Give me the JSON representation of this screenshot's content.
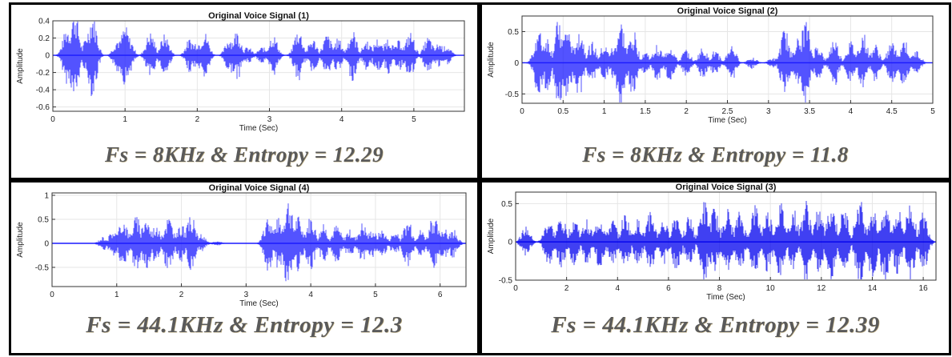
{
  "chart_data": [
    {
      "type": "line",
      "title": "Original Voice Signal (1)",
      "xlabel": "Time (Sec)",
      "ylabel": "Amplitude",
      "xlim": [
        0,
        5.7
      ],
      "ylim": [
        -0.65,
        0.4
      ],
      "xticks": [
        "0",
        "1",
        "2",
        "3",
        "4",
        "5"
      ],
      "yticks": [
        "0.4",
        "0.2",
        "0",
        "-0.2",
        "-0.4",
        "-0.6"
      ],
      "grid": true,
      "color": "#1a1aff",
      "series": [
        {
          "x": [
            0.0,
            0.2,
            0.3,
            0.5,
            0.55,
            0.9,
            1.0,
            1.05,
            1.35,
            1.55,
            1.9,
            2.0,
            2.1,
            2.45,
            2.55,
            2.7,
            2.9,
            3.05,
            3.4,
            3.6,
            3.8,
            3.95,
            4.15,
            4.35,
            4.5,
            4.65,
            4.8,
            4.95,
            5.2,
            5.35,
            5.45,
            5.7
          ],
          "y": [
            0.0,
            0.34,
            -0.55,
            0.32,
            -0.5,
            0.2,
            -0.35,
            0.22,
            -0.28,
            0.25,
            -0.2,
            0.18,
            -0.28,
            0.22,
            -0.3,
            0.1,
            -0.1,
            0.25,
            -0.32,
            0.2,
            -0.25,
            0.2,
            -0.3,
            0.18,
            -0.2,
            0.22,
            -0.18,
            0.28,
            -0.22,
            0.15,
            -0.12,
            0.0
          ]
        }
      ],
      "caption": "Fs = 8KHz & Entropy = 12.29"
    },
    {
      "type": "line",
      "title": "Original Voice Signal (2)",
      "xlabel": "Time (Sec)",
      "ylabel": "Amplitude",
      "xlim": [
        0,
        5
      ],
      "ylim": [
        -0.65,
        0.75
      ],
      "xticks": [
        "0",
        "0.5",
        "1",
        "1.5",
        "2",
        "2.5",
        "3",
        "3.5",
        "4",
        "4.5",
        "5"
      ],
      "yticks": [
        "0.5",
        "0",
        "-0.5"
      ],
      "grid": true,
      "color": "#1a1aff",
      "series": [
        {
          "x": [
            0.0,
            0.2,
            0.3,
            0.45,
            0.55,
            0.7,
            0.85,
            1.0,
            1.1,
            1.2,
            1.35,
            1.5,
            1.65,
            1.8,
            2.0,
            2.2,
            2.35,
            2.55,
            2.8,
            3.05,
            3.2,
            3.35,
            3.45,
            3.6,
            3.8,
            4.0,
            4.15,
            4.3,
            4.5,
            4.65,
            4.8,
            5.0
          ],
          "y": [
            0.0,
            0.55,
            -0.45,
            0.72,
            -0.6,
            0.6,
            -0.35,
            0.3,
            -0.25,
            0.7,
            -0.55,
            0.2,
            -0.3,
            0.3,
            -0.22,
            0.25,
            -0.2,
            0.3,
            -0.1,
            0.08,
            0.55,
            -0.4,
            0.7,
            -0.3,
            0.4,
            -0.35,
            0.5,
            -0.3,
            0.35,
            -0.4,
            0.2,
            0.0
          ]
        }
      ],
      "caption": "Fs = 8KHz  & Entropy = 11.8"
    },
    {
      "type": "line",
      "title": "Original Voice Signal (4)",
      "xlabel": "Time (Sec)",
      "ylabel": "Amplitude",
      "xlim": [
        0,
        6.4
      ],
      "ylim": [
        -0.9,
        1.05
      ],
      "xticks": [
        "0",
        "1",
        "2",
        "3",
        "4",
        "5",
        "6"
      ],
      "yticks": [
        "1",
        "0.5",
        "0",
        "-0.5"
      ],
      "grid": true,
      "color": "#1a1aff",
      "series": [
        {
          "x": [
            0.0,
            0.8,
            0.95,
            1.1,
            1.3,
            1.45,
            1.6,
            1.8,
            2.0,
            2.15,
            2.3,
            2.55,
            3.0,
            3.35,
            3.5,
            3.65,
            3.8,
            4.0,
            4.2,
            4.4,
            4.6,
            4.8,
            4.95,
            5.1,
            5.3,
            5.5,
            5.7,
            5.9,
            6.05,
            6.2,
            6.4
          ],
          "y": [
            0.0,
            0.15,
            -0.3,
            0.55,
            -0.6,
            0.6,
            -0.4,
            0.6,
            -0.4,
            0.6,
            -0.2,
            0.05,
            0.0,
            0.6,
            -0.55,
            1.0,
            -0.6,
            0.6,
            -0.4,
            0.4,
            -0.3,
            0.45,
            -0.3,
            0.3,
            -0.25,
            0.5,
            -0.3,
            0.6,
            -0.35,
            0.3,
            0.0
          ]
        }
      ],
      "caption": "Fs = 44.1KHz &  Entropy = 12.3"
    },
    {
      "type": "line",
      "title": "Original Voice Signal (3)",
      "xlabel": "Time (Sec)",
      "ylabel": "Amplitude",
      "xlim": [
        0,
        16.5
      ],
      "ylim": [
        -0.5,
        0.65
      ],
      "xticks": [
        "0",
        "2",
        "4",
        "6",
        "8",
        "10",
        "12",
        "14",
        "16"
      ],
      "yticks": [
        "0.5",
        "0",
        "-0.5"
      ],
      "grid": true,
      "color": "#0000ee",
      "series": [
        {
          "x": [
            0.0,
            0.4,
            1.3,
            1.8,
            2.3,
            2.8,
            3.3,
            3.8,
            4.3,
            4.8,
            5.3,
            5.8,
            6.3,
            6.8,
            7.4,
            7.8,
            8.3,
            8.8,
            9.4,
            9.9,
            10.4,
            10.9,
            11.4,
            11.9,
            12.4,
            12.9,
            13.5,
            14.0,
            14.5,
            15.0,
            15.5,
            16.0,
            16.4
          ],
          "y": [
            0.0,
            0.2,
            0.3,
            -0.35,
            0.35,
            -0.3,
            0.35,
            -0.3,
            0.38,
            -0.3,
            0.4,
            -0.3,
            0.4,
            -0.35,
            0.55,
            -0.45,
            0.45,
            -0.4,
            0.5,
            -0.42,
            0.52,
            -0.45,
            0.55,
            -0.45,
            0.52,
            -0.45,
            0.58,
            -0.48,
            0.55,
            -0.45,
            0.55,
            -0.4,
            0.0
          ]
        }
      ],
      "caption": "Fs = 44.1KHz & Entropy = 12.39"
    }
  ]
}
